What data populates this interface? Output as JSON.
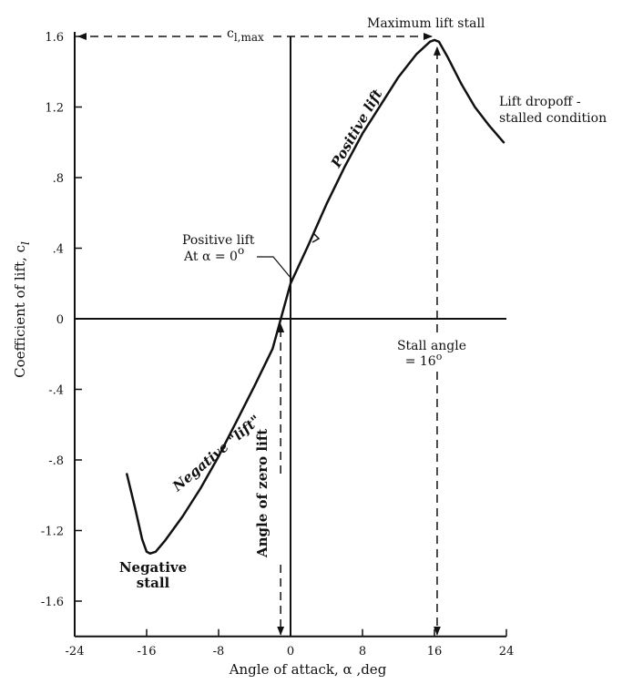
{
  "chart_data": {
    "type": "line",
    "xlabel": "Angle of attack,  α ,deg",
    "ylabel": "Coefficient of lift, c",
    "ylabel_subscript": "l",
    "xlim": [
      -24,
      24
    ],
    "ylim": [
      -1.8,
      1.6
    ],
    "x_ticks": [
      -24,
      -16,
      -8,
      0,
      8,
      16,
      24
    ],
    "x_tick_labels": [
      "-24",
      "-16",
      "-8",
      "0",
      "8",
      "16",
      "24"
    ],
    "y_ticks": [
      1.6,
      1.2,
      0.8,
      0.4,
      0,
      -0.4,
      -0.8,
      -1.2,
      -1.6
    ],
    "y_tick_labels": [
      "1.6",
      "1.2",
      ".8",
      ".4",
      "0",
      "-.4",
      "-.8",
      "-1.2",
      "-1.6"
    ],
    "grid": false,
    "series": [
      {
        "x": [
          -18.2,
          -17.3,
          -16.5,
          -16.0,
          -15.6,
          -15.0,
          -14.0,
          -12.0,
          -10.0,
          -8.0,
          -6.0,
          -4.0,
          -2.0,
          0.0,
          2.0,
          4.0,
          6.0,
          8.0,
          10.0,
          12.0,
          14.0,
          15.5,
          16.0,
          16.5,
          17.5,
          19.0,
          20.5,
          22.0,
          23.7
        ],
        "y": [
          -0.88,
          -1.07,
          -1.25,
          -1.32,
          -1.33,
          -1.32,
          -1.26,
          -1.12,
          -0.96,
          -0.78,
          -0.58,
          -0.38,
          -0.17,
          0.2,
          0.42,
          0.65,
          0.86,
          1.05,
          1.21,
          1.37,
          1.5,
          1.57,
          1.58,
          1.57,
          1.48,
          1.33,
          1.2,
          1.1,
          1.0
        ]
      }
    ],
    "annotations": {
      "max_stall": "Maximum lift stall",
      "cl_max": "c",
      "cl_max_sub": "l,max",
      "dropoff_line1": "Lift dropoff -",
      "dropoff_line2": "stalled condition",
      "positive_lift_curve": "Positive lift",
      "positive_lift_zero_line1": "Positive  lift",
      "positive_lift_zero_line2": "At  α  =  0",
      "positive_lift_zero_deg": "o",
      "stall_angle_line1": "Stall angle",
      "stall_angle_line2": "= 16",
      "stall_angle_deg": "o",
      "negative_lift_curve": "Negative \"lift\"",
      "zero_lift_angle": "Angle of zero lift",
      "negative_stall_line1": "Negative",
      "negative_stall_line2": "stall"
    }
  }
}
